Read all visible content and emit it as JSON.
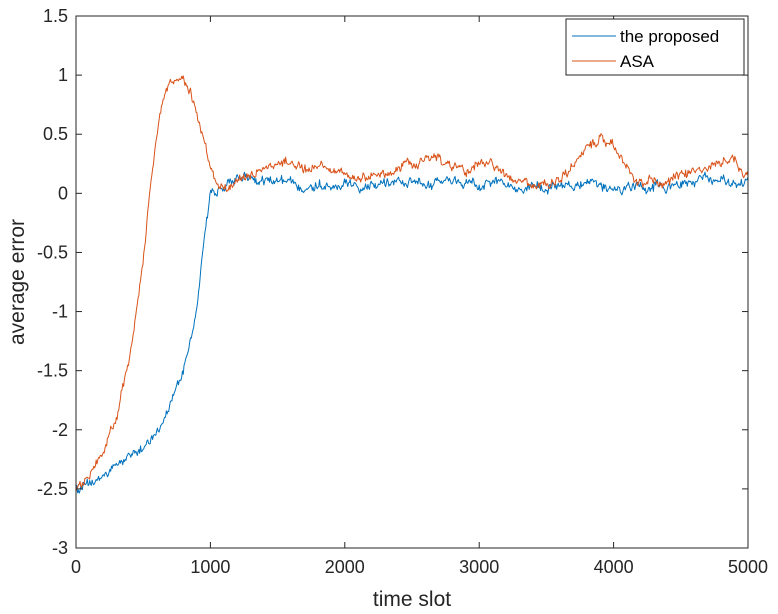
{
  "chart_data": {
    "type": "line",
    "title": "",
    "xlabel": "time slot",
    "ylabel": "average error",
    "xlim": [
      0,
      5000
    ],
    "ylim": [
      -3,
      1.5
    ],
    "xticks": [
      0,
      1000,
      2000,
      3000,
      4000,
      5000
    ],
    "xtick_labels": [
      "0",
      "1000",
      "2000",
      "3000",
      "4000",
      "5000"
    ],
    "yticks": [
      -3,
      -2.5,
      -2,
      -1.5,
      -1,
      -0.5,
      0,
      0.5,
      1,
      1.5
    ],
    "ytick_labels": [
      "-3",
      "-2.5",
      "-2",
      "-1.5",
      "-1",
      "-0.5",
      "0",
      "0.5",
      "1",
      "1.5"
    ],
    "grid": false,
    "legend_position": "top-right",
    "series": [
      {
        "name": "the proposed",
        "color": "#0072bd",
        "x": [
          0,
          100,
          200,
          300,
          400,
          500,
          600,
          700,
          800,
          900,
          950,
          1000,
          1050,
          1100,
          1150,
          1200,
          1300,
          1400,
          1500,
          1600,
          1700,
          1800,
          1900,
          2000,
          2100,
          2200,
          2300,
          2400,
          2500,
          2600,
          2700,
          2800,
          2900,
          3000,
          3100,
          3200,
          3300,
          3400,
          3500,
          3600,
          3700,
          3800,
          3900,
          4000,
          4100,
          4200,
          4300,
          4400,
          4500,
          4600,
          4700,
          4800,
          4900,
          5000
        ],
        "y": [
          -2.5,
          -2.47,
          -2.4,
          -2.3,
          -2.22,
          -2.15,
          -2.02,
          -1.8,
          -1.5,
          -1.0,
          -0.4,
          0.0,
          0.02,
          0.05,
          0.1,
          0.12,
          0.13,
          0.12,
          0.1,
          0.08,
          0.06,
          0.07,
          0.08,
          0.08,
          0.07,
          0.08,
          0.1,
          0.1,
          0.08,
          0.07,
          0.08,
          0.1,
          0.08,
          0.07,
          0.1,
          0.08,
          0.07,
          0.05,
          0.04,
          0.05,
          0.06,
          0.06,
          0.05,
          0.04,
          0.05,
          0.06,
          0.07,
          0.06,
          0.08,
          0.1,
          0.12,
          0.1,
          0.1,
          0.08
        ]
      },
      {
        "name": "ASA",
        "color": "#d95319",
        "x": [
          0,
          100,
          200,
          300,
          400,
          500,
          550,
          600,
          650,
          700,
          750,
          800,
          850,
          900,
          950,
          1000,
          1050,
          1100,
          1150,
          1200,
          1300,
          1400,
          1500,
          1600,
          1700,
          1800,
          1900,
          2000,
          2100,
          2200,
          2300,
          2400,
          2500,
          2600,
          2700,
          2800,
          2900,
          3000,
          3100,
          3200,
          3300,
          3400,
          3500,
          3600,
          3700,
          3800,
          3900,
          4000,
          4100,
          4200,
          4300,
          4400,
          4500,
          4600,
          4700,
          4800,
          4900,
          5000
        ],
        "y": [
          -2.5,
          -2.4,
          -2.2,
          -1.9,
          -1.4,
          -0.6,
          0.0,
          0.45,
          0.8,
          0.95,
          0.98,
          0.95,
          0.85,
          0.68,
          0.45,
          0.25,
          0.08,
          0.02,
          0.07,
          0.1,
          0.15,
          0.2,
          0.25,
          0.25,
          0.22,
          0.24,
          0.2,
          0.15,
          0.1,
          0.15,
          0.18,
          0.22,
          0.25,
          0.28,
          0.28,
          0.22,
          0.2,
          0.25,
          0.25,
          0.15,
          0.1,
          0.08,
          0.06,
          0.12,
          0.25,
          0.38,
          0.47,
          0.4,
          0.2,
          0.1,
          0.12,
          0.1,
          0.15,
          0.18,
          0.22,
          0.28,
          0.32,
          0.12
        ]
      }
    ]
  }
}
